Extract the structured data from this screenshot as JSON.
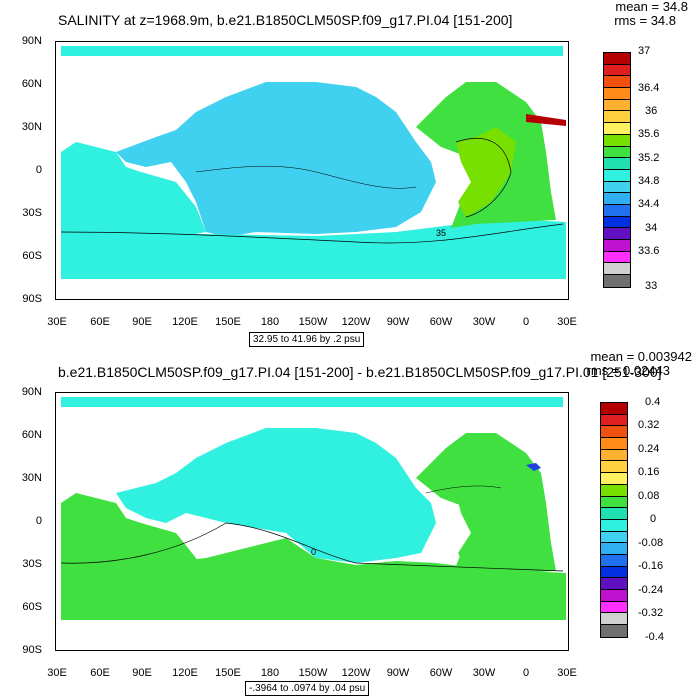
{
  "maps": [
    {
      "title": "SALINITY at z=1968.9m, b.e21.B1850CLM50SP.f09_g17.PI.04 [151-200]",
      "mean_text": "mean = 34.8",
      "rms_text": "rms = 34.8",
      "range_text": "32.95 to 41.96 by .2 psu",
      "contour_label": "35",
      "colorbar_labels": [
        "37",
        "36.4",
        "36",
        "35.6",
        "35.2",
        "34.8",
        "34.4",
        "34",
        "33.6",
        "33"
      ],
      "colorbar_colors": [
        "#b40000",
        "#e02020",
        "#f05010",
        "#ff8c1a",
        "#ffb030",
        "#ffd040",
        "#fff060",
        "#78e000",
        "#40e040",
        "#20e0b0",
        "#30f0e0",
        "#40d0f0",
        "#30b0f0",
        "#2070f0",
        "#0030e0",
        "#6010c0",
        "#c010d0",
        "#ff30ff",
        "#d0d0d0",
        "#707070"
      ],
      "region_colors": {
        "pacific": "#40d0f0",
        "indian": "#30f0e0",
        "southern": "#30f0e0",
        "atlantic": "#40e040",
        "core": "#78e000",
        "med": "#b40000",
        "arctic": "#30f0e0"
      }
    },
    {
      "title": "b.e21.B1850CLM50SP.f09_g17.PI.04 [151-200] - b.e21.B1850CLM50SP.f09_g17.PI.01 [251-300]",
      "mean_text": "mean = 0.003942",
      "rms_text": "rms = 0.02443",
      "range_text": "-.3964 to .0974 by .04 psu",
      "contour_label": "0",
      "colorbar_labels": [
        "0.4",
        "0.32",
        "0.24",
        "0.16",
        "0.08",
        "0",
        "-0.08",
        "-0.16",
        "-0.24",
        "-0.32",
        "-0.4"
      ],
      "colorbar_colors": [
        "#b40000",
        "#e02020",
        "#f05010",
        "#ff8c1a",
        "#ffb030",
        "#ffd040",
        "#fff060",
        "#78e000",
        "#40e040",
        "#20e0b0",
        "#30f0e0",
        "#40d0f0",
        "#30b0f0",
        "#2070f0",
        "#0030e0",
        "#6010c0",
        "#c010d0",
        "#ff30ff",
        "#d0d0d0",
        "#707070"
      ],
      "region_colors": {
        "pacific": "#30f0e0",
        "indian": "#40e040",
        "southern": "#40e040",
        "atlantic": "#40e040",
        "core": "#40e040",
        "med": "#2040e0",
        "arctic": "#30f0e0"
      }
    }
  ],
  "lat_labels": [
    "90N",
    "60N",
    "30N",
    "0",
    "30S",
    "60S",
    "90S"
  ],
  "lon_labels": [
    "30E",
    "60E",
    "90E",
    "120E",
    "150E",
    "180",
    "150W",
    "120W",
    "90W",
    "60W",
    "30W",
    "0",
    "30E"
  ]
}
